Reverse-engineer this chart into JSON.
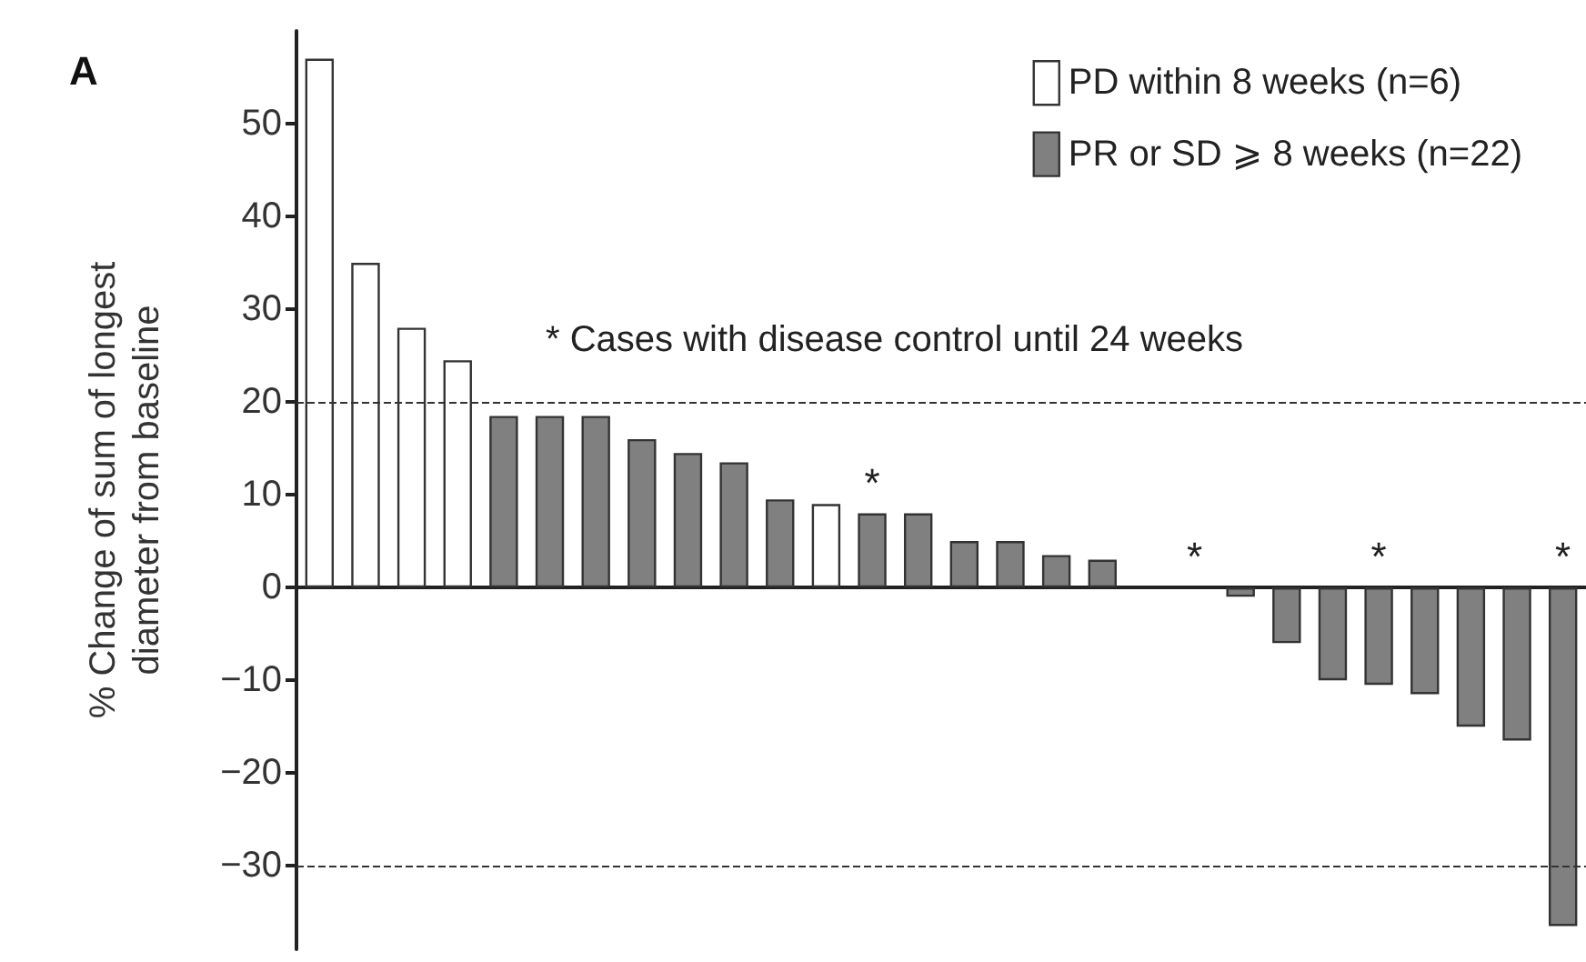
{
  "chart_data": {
    "type": "bar",
    "ylabel": "% Change of sum of longest\ndiameter from baseline",
    "categories": [
      null,
      null,
      null,
      null,
      null,
      null,
      null,
      null,
      null,
      null,
      null,
      null,
      null,
      null,
      null,
      null,
      null,
      null,
      null,
      null,
      null,
      null,
      null,
      null,
      null,
      null,
      null,
      null
    ],
    "series": [
      {
        "name": "PD within 8 weeks (n=6)",
        "color": "#ffffff",
        "values": [
          57,
          35,
          28,
          24.5,
          null,
          null,
          null,
          null,
          null,
          null,
          null,
          9,
          null,
          null,
          null,
          null,
          null,
          null,
          0,
          null,
          null,
          null,
          null,
          null,
          null,
          null,
          null,
          null
        ],
        "value_labels": [
          null,
          null,
          null,
          null,
          null,
          null,
          null,
          null,
          null,
          null,
          null,
          null,
          null,
          null,
          null,
          null,
          null,
          null,
          null,
          null,
          null,
          null,
          null,
          null,
          null,
          null,
          null,
          null
        ]
      },
      {
        "name": "PR or SD ⩾ 8 weeks (n=22)",
        "color": "#808080",
        "values": [
          null,
          null,
          null,
          null,
          18.5,
          18.5,
          18.5,
          16,
          14.5,
          13.5,
          9.5,
          null,
          8,
          8,
          5,
          5,
          3.5,
          3,
          null,
          0,
          -1,
          -6,
          -10,
          -10.5,
          -11.5,
          -15,
          -16.5,
          -36.5
        ],
        "value_labels": [
          null,
          null,
          null,
          null,
          null,
          null,
          null,
          null,
          null,
          null,
          null,
          null,
          "*",
          null,
          null,
          null,
          null,
          null,
          null,
          "*",
          null,
          null,
          null,
          "*",
          null,
          null,
          null,
          "*"
        ]
      }
    ],
    "ylim": [
      -39,
      60
    ],
    "yticks": [
      -30,
      -20,
      -10,
      0,
      10,
      20,
      30,
      40,
      50
    ],
    "ref_lines": [
      {
        "axis": "y",
        "value": 20,
        "line_style": "dashed"
      },
      {
        "axis": "y",
        "value": -30,
        "line_style": "dashed"
      }
    ],
    "annotations": [
      "A",
      "* Cases with disease control until 24 weeks"
    ],
    "legend": "top right",
    "grid": false,
    "tick_labels": "y"
  }
}
